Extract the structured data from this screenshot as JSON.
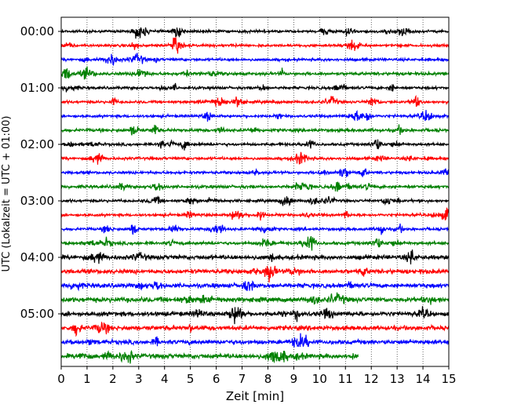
{
  "chart_data": {
    "type": "line",
    "title": "",
    "xlabel": "Zeit  [min]",
    "ylabel": "UTC (Lokalzeit = UTC + 01:00)",
    "xlim": [
      0,
      15
    ],
    "x_ticks": [
      0,
      1,
      2,
      3,
      4,
      5,
      6,
      7,
      8,
      9,
      10,
      11,
      12,
      13,
      14,
      15
    ],
    "x_tick_labels": [
      "0",
      "1",
      "2",
      "3",
      "4",
      "5",
      "6",
      "7",
      "8",
      "9",
      "10",
      "11",
      "12",
      "13",
      "14",
      "15"
    ],
    "y_tick_labels": [
      "00:00",
      "01:00",
      "02:00",
      "03:00",
      "04:00",
      "05:00"
    ],
    "grid": "vertical dotted",
    "trace_interval_min": 15,
    "trace_colors": [
      "#000000",
      "#ff0000",
      "#0000ff",
      "#008000"
    ],
    "traces": [
      {
        "start": "00:00",
        "color": "#000000",
        "end_min": 15
      },
      {
        "start": "00:15",
        "color": "#ff0000",
        "end_min": 15
      },
      {
        "start": "00:30",
        "color": "#0000ff",
        "end_min": 15
      },
      {
        "start": "00:45",
        "color": "#008000",
        "end_min": 15
      },
      {
        "start": "01:00",
        "color": "#000000",
        "end_min": 15
      },
      {
        "start": "01:15",
        "color": "#ff0000",
        "end_min": 15
      },
      {
        "start": "01:30",
        "color": "#0000ff",
        "end_min": 15
      },
      {
        "start": "01:45",
        "color": "#008000",
        "end_min": 15
      },
      {
        "start": "02:00",
        "color": "#000000",
        "end_min": 15
      },
      {
        "start": "02:15",
        "color": "#ff0000",
        "end_min": 15
      },
      {
        "start": "02:30",
        "color": "#0000ff",
        "end_min": 15
      },
      {
        "start": "02:45",
        "color": "#008000",
        "end_min": 15
      },
      {
        "start": "03:00",
        "color": "#000000",
        "end_min": 15
      },
      {
        "start": "03:15",
        "color": "#ff0000",
        "end_min": 15
      },
      {
        "start": "03:30",
        "color": "#0000ff",
        "end_min": 15
      },
      {
        "start": "03:45",
        "color": "#008000",
        "end_min": 15
      },
      {
        "start": "04:00",
        "color": "#000000",
        "end_min": 15
      },
      {
        "start": "04:15",
        "color": "#ff0000",
        "end_min": 15
      },
      {
        "start": "04:30",
        "color": "#0000ff",
        "end_min": 15
      },
      {
        "start": "04:45",
        "color": "#008000",
        "end_min": 15
      },
      {
        "start": "05:00",
        "color": "#000000",
        "end_min": 15
      },
      {
        "start": "05:15",
        "color": "#ff0000",
        "end_min": 15
      },
      {
        "start": "05:30",
        "color": "#0000ff",
        "end_min": 15
      },
      {
        "start": "05:45",
        "color": "#008000",
        "end_min": 11.5
      }
    ]
  }
}
